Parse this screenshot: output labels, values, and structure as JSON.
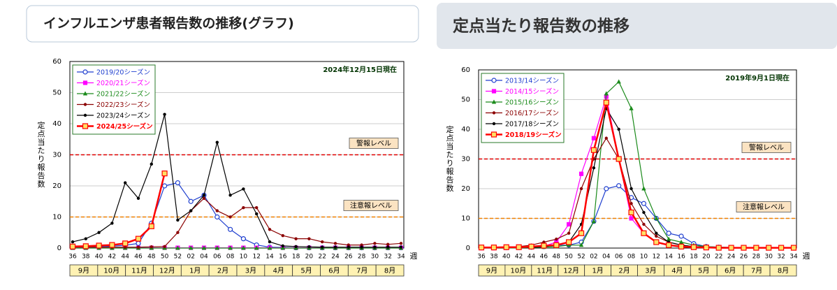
{
  "chart_data": [
    {
      "type": "line",
      "title": "インフルエンザ患者報告数の推移(グラフ)",
      "annotation": "2024年12月15日現在",
      "ylabel": "定点当たり報告数",
      "xlabel": "週",
      "categories": [
        "36",
        "38",
        "40",
        "42",
        "44",
        "46",
        "48",
        "50",
        "52",
        "02",
        "04",
        "06",
        "08",
        "10",
        "12",
        "14",
        "16",
        "18",
        "20",
        "22",
        "24",
        "26",
        "28",
        "30",
        "32",
        "34"
      ],
      "months": [
        "9月",
        "10月",
        "11月",
        "12月",
        "1月",
        "2月",
        "3月",
        "4月",
        "5月",
        "6月",
        "7月",
        "8月"
      ],
      "ylim": [
        0,
        60
      ],
      "yticks": [
        0,
        10,
        20,
        30,
        40,
        50,
        60
      ],
      "grid": true,
      "legend": "upper left",
      "reference_lines": [
        {
          "value": 30,
          "label": "警報レベル",
          "color": "#e00000"
        },
        {
          "value": 10,
          "label": "注意報レベル",
          "color": "#f08000"
        }
      ],
      "series": [
        {
          "name": "2019/20シーズン",
          "color": "#1f3fcf",
          "marker": "open-circle",
          "line_width": 1.2,
          "values": [
            0.3,
            0.3,
            0.4,
            0.6,
            0.9,
            1.5,
            8,
            20,
            21,
            15,
            17,
            10,
            6,
            3,
            1,
            0.3,
            0.2,
            0.1,
            0.1,
            0.1,
            0.1,
            0.1,
            0.1,
            0.1,
            0.1,
            0.1
          ]
        },
        {
          "name": "2020/21シーズン",
          "color": "#ff00ff",
          "marker": "square",
          "line_width": 1.2,
          "values": [
            0.1,
            0.1,
            0.1,
            0.1,
            0.1,
            0.1,
            0.1,
            0.1,
            0.1,
            0.1,
            0.1,
            0.1,
            0.1,
            0.1,
            0.1,
            0.1,
            0.1,
            0.1,
            0.1,
            0.1,
            0.1,
            0.1,
            0.1,
            0.1,
            0.1,
            0.1
          ]
        },
        {
          "name": "2021/22シーズン",
          "color": "#1a8a1a",
          "marker": "triangle",
          "line_width": 1.2,
          "values": [
            0,
            0,
            0,
            0,
            0,
            0,
            0,
            0,
            0,
            0,
            0,
            0,
            0,
            0,
            0,
            0,
            0,
            0,
            0,
            0,
            0,
            0,
            0,
            0,
            0,
            0
          ]
        },
        {
          "name": "2022/23シーズン",
          "color": "#8b0000",
          "marker": "dot",
          "line_width": 1.2,
          "values": [
            0.3,
            0.3,
            0.3,
            0.3,
            0.3,
            0.3,
            0.4,
            0.5,
            5,
            12,
            16,
            12,
            10,
            13,
            13,
            6,
            4,
            3,
            3,
            2,
            1.5,
            1,
            1,
            1.5,
            1.2,
            1.5
          ]
        },
        {
          "name": "2023/24シーズン",
          "color": "#000000",
          "marker": "dot",
          "line_width": 1.2,
          "values": [
            2,
            3,
            5,
            8,
            21,
            16,
            27,
            43,
            9,
            12,
            17,
            34,
            17,
            19,
            11,
            2,
            0.7,
            0.5,
            0.4,
            0.3,
            0.3,
            0.3,
            0.3,
            0.3,
            0.3,
            0.3
          ]
        },
        {
          "name": "2024/25シーズン",
          "color": "#ff0000",
          "marker": "square",
          "marker_fill": "#ffe066",
          "line_width": 2.5,
          "values": [
            0.5,
            0.6,
            0.8,
            1,
            1.5,
            3,
            7,
            24,
            null,
            null,
            null,
            null,
            null,
            null,
            null,
            null,
            null,
            null,
            null,
            null,
            null,
            null,
            null,
            null,
            null,
            null
          ]
        }
      ]
    },
    {
      "type": "line",
      "title": "定点当たり報告数の推移",
      "annotation": "2019年9月1日現在",
      "ylabel": "定点当たり報告数",
      "xlabel": "週",
      "categories": [
        "36",
        "38",
        "40",
        "42",
        "44",
        "46",
        "48",
        "50",
        "52",
        "02",
        "04",
        "06",
        "08",
        "10",
        "12",
        "14",
        "16",
        "18",
        "20",
        "22",
        "24",
        "26",
        "28",
        "30",
        "32",
        "34"
      ],
      "months": [
        "9月",
        "10月",
        "11月",
        "12月",
        "1月",
        "2月",
        "3月",
        "4月",
        "5月",
        "6月",
        "7月",
        "8月"
      ],
      "ylim": [
        0,
        60
      ],
      "yticks": [
        0,
        10,
        20,
        30,
        40,
        50,
        60
      ],
      "grid": true,
      "legend": "upper left",
      "reference_lines": [
        {
          "value": 30,
          "label": "警報レベル",
          "color": "#e00000"
        },
        {
          "value": 10,
          "label": "注意報レベル",
          "color": "#f08000"
        }
      ],
      "series": [
        {
          "name": "2013/14シーズン",
          "color": "#1f3fcf",
          "marker": "open-circle",
          "line_width": 1.2,
          "values": [
            0.1,
            0.1,
            0.1,
            0.2,
            0.3,
            0.5,
            1,
            1,
            2,
            9,
            20,
            21,
            17,
            15,
            10,
            5,
            4,
            1.5,
            0.5,
            0.3,
            0.2,
            0.2,
            0.1,
            0.1,
            0.1,
            0.1
          ]
        },
        {
          "name": "2014/15シーズン",
          "color": "#ff00ff",
          "marker": "square",
          "line_width": 1.2,
          "values": [
            0,
            0,
            0.1,
            0.2,
            0.3,
            0.6,
            2,
            8,
            25,
            37,
            51,
            30,
            10,
            5,
            2,
            1,
            0.5,
            0.3,
            0.2,
            0.1,
            0.1,
            0.1,
            0.1,
            0.1,
            0.1,
            0.1
          ]
        },
        {
          "name": "2015/16シーズン",
          "color": "#1a8a1a",
          "marker": "triangle",
          "line_width": 1.2,
          "values": [
            0,
            0,
            0,
            0.1,
            0.2,
            0.3,
            0.5,
            1,
            1,
            9,
            52,
            56,
            47,
            20,
            10,
            3,
            2,
            1,
            0.5,
            0.3,
            0.2,
            0.1,
            0.1,
            0.1,
            0.1,
            0.1
          ]
        },
        {
          "name": "2016/17シーズン",
          "color": "#8b0000",
          "marker": "dot",
          "line_width": 1.2,
          "values": [
            0.2,
            0.2,
            0.3,
            0.5,
            1,
            2,
            3,
            5,
            20,
            30,
            37,
            30,
            15,
            8,
            4,
            2,
            1,
            0.5,
            0.3,
            0.2,
            0.1,
            0.1,
            0.1,
            0.1,
            0.1,
            0.1
          ]
        },
        {
          "name": "2017/18シーズン",
          "color": "#000000",
          "marker": "dot",
          "line_width": 1.2,
          "values": [
            0.1,
            0.1,
            0.1,
            0.2,
            0.3,
            0.5,
            1,
            2,
            8,
            27,
            47,
            40,
            20,
            12,
            5,
            2,
            1,
            0.5,
            0.3,
            0.2,
            0.1,
            0.1,
            0.1,
            0.1,
            0.1,
            0.1
          ]
        },
        {
          "name": "2018/19シーズン",
          "color": "#ff0000",
          "marker": "square",
          "marker_fill": "#ffe066",
          "line_width": 2.5,
          "values": [
            0.2,
            0.2,
            0.3,
            0.3,
            0.5,
            0.8,
            1,
            2,
            5,
            33,
            49,
            30,
            12,
            5,
            2,
            1,
            0.5,
            0.3,
            0.2,
            0.1,
            0.1,
            0.1,
            0.1,
            0.1,
            0.1,
            0.1
          ]
        }
      ]
    }
  ]
}
